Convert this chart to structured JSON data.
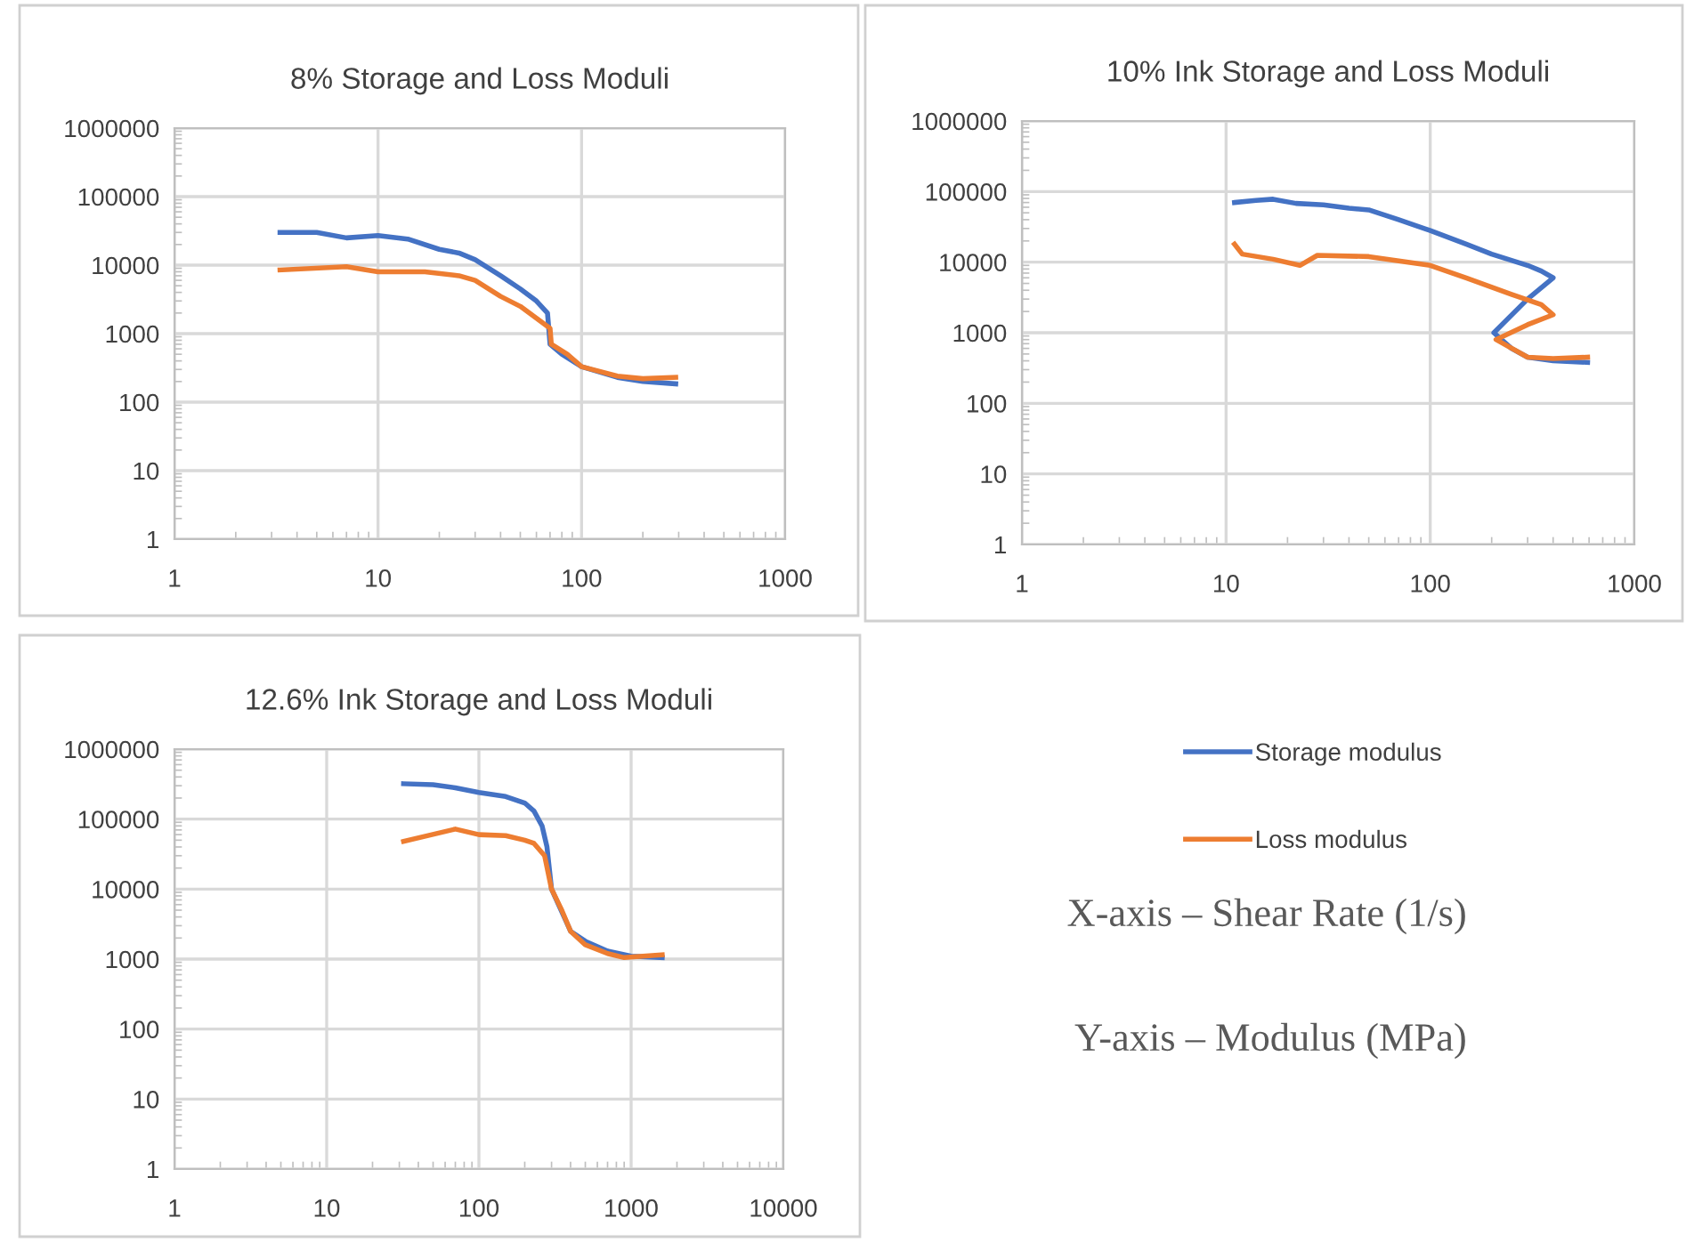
{
  "chart_data": [
    {
      "type": "line",
      "title": "8% Storage and Loss Moduli",
      "log": "xy",
      "xlim": [
        1,
        1000
      ],
      "xticks": [
        1,
        10,
        100,
        1000
      ],
      "ylim": [
        1,
        1000000
      ],
      "yticks": [
        1,
        10,
        100,
        1000,
        10000,
        100000,
        1000000
      ],
      "grid": true,
      "legend": false,
      "series": [
        {
          "color": "#4472c4",
          "x": [
            3.3,
            5,
            7,
            10,
            14,
            20,
            25,
            30,
            40,
            50,
            60,
            68,
            70,
            80,
            100,
            150,
            200,
            290
          ],
          "values": [
            30000,
            30000,
            25000,
            27000,
            24000,
            17000,
            15000,
            12000,
            7000,
            4500,
            3000,
            2000,
            700,
            500,
            330,
            230,
            200,
            185
          ]
        },
        {
          "color": "#ed7d31",
          "x": [
            3.3,
            7,
            10,
            17,
            25,
            30,
            40,
            50,
            70,
            71,
            85,
            100,
            150,
            200,
            290
          ],
          "values": [
            8500,
            9500,
            8000,
            8000,
            7000,
            6000,
            3500,
            2500,
            1200,
            700,
            500,
            330,
            240,
            220,
            230
          ]
        }
      ]
    },
    {
      "type": "line",
      "title": "10% Ink Storage and Loss Moduli",
      "log": "xy",
      "xlim": [
        1,
        1000
      ],
      "xticks": [
        1,
        10,
        100,
        1000
      ],
      "ylim": [
        1,
        1000000
      ],
      "yticks": [
        1,
        10,
        100,
        1000,
        10000,
        100000,
        1000000
      ],
      "grid": true,
      "legend": false,
      "series": [
        {
          "color": "#4472c4",
          "x": [
            11,
            14,
            17,
            22,
            30,
            40,
            50,
            70,
            100,
            150,
            200,
            300,
            350,
            400,
            300,
            205,
            250,
            300,
            400,
            590
          ],
          "values": [
            70000,
            75000,
            78000,
            68000,
            65000,
            58000,
            55000,
            40000,
            28000,
            18000,
            13000,
            9000,
            7500,
            6000,
            3000,
            1000,
            600,
            450,
            400,
            380
          ]
        },
        {
          "color": "#ed7d31",
          "x": [
            11,
            12,
            17,
            23,
            28,
            50,
            100,
            150,
            250,
            350,
            400,
            300,
            210,
            300,
            400,
            590
          ],
          "values": [
            18000,
            13000,
            11000,
            9000,
            12500,
            12000,
            9000,
            6000,
            3500,
            2500,
            1800,
            1300,
            800,
            450,
            430,
            450
          ]
        }
      ]
    },
    {
      "type": "line",
      "title": "12.6% Ink Storage and Loss Moduli",
      "log": "xy",
      "xlim": [
        1,
        10000
      ],
      "xticks": [
        1,
        10,
        100,
        1000,
        10000
      ],
      "ylim": [
        1,
        1000000
      ],
      "yticks": [
        1,
        10,
        100,
        1000,
        10000,
        100000,
        1000000
      ],
      "grid": true,
      "legend": "right",
      "annotations": [
        "X-axis – Shear Rate (1/s)",
        "Y-axis – Modulus (MPa)"
      ],
      "series": [
        {
          "name": "Storage modulus",
          "color": "#4472c4",
          "x": [
            32,
            50,
            70,
            100,
            150,
            200,
            230,
            260,
            280,
            300,
            400,
            500,
            700,
            1000,
            1600
          ],
          "values": [
            320000,
            310000,
            280000,
            240000,
            210000,
            170000,
            130000,
            80000,
            40000,
            10000,
            2500,
            1800,
            1300,
            1100,
            1050
          ]
        },
        {
          "name": "Loss modulus",
          "color": "#ed7d31",
          "x": [
            32,
            70,
            100,
            150,
            200,
            230,
            270,
            300,
            350,
            400,
            500,
            700,
            900,
            1600
          ],
          "values": [
            48000,
            72000,
            60000,
            58000,
            50000,
            45000,
            30000,
            10000,
            5000,
            2500,
            1600,
            1200,
            1050,
            1150
          ]
        }
      ]
    }
  ]
}
